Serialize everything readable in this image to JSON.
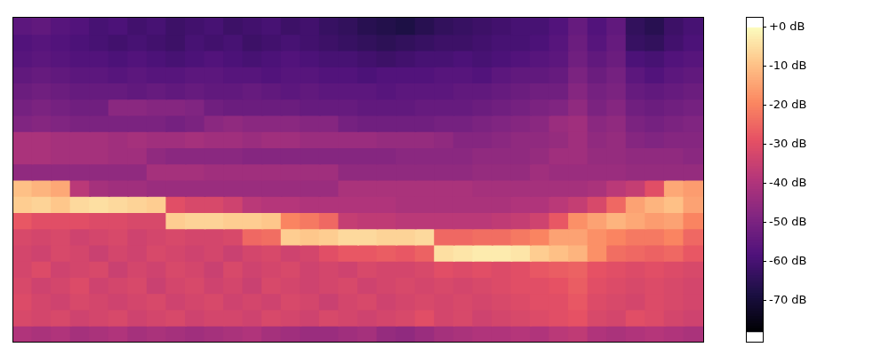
{
  "chart_data": {
    "type": "heatmap",
    "tick_labels": false,
    "cells": [
      [
        -56,
        -55,
        -57,
        -58,
        -60,
        -59,
        -61,
        -60,
        -62,
        -61,
        -60,
        -62,
        -61,
        -60,
        -62,
        -61,
        -63,
        -64,
        -66,
        -67,
        -68,
        -66,
        -64,
        -63,
        -62,
        -61,
        -60,
        -60,
        -58,
        -54,
        -58,
        -55,
        -64,
        -66,
        -62,
        -60
      ],
      [
        -58,
        -57,
        -58,
        -59,
        -60,
        -61,
        -60,
        -61,
        -62,
        -60,
        -61,
        -60,
        -62,
        -61,
        -60,
        -61,
        -62,
        -63,
        -64,
        -65,
        -64,
        -63,
        -62,
        -62,
        -61,
        -60,
        -60,
        -59,
        -57,
        -53,
        -57,
        -54,
        -63,
        -64,
        -61,
        -59
      ],
      [
        -57,
        -56,
        -57,
        -58,
        -58,
        -59,
        -58,
        -59,
        -60,
        -59,
        -58,
        -59,
        -60,
        -59,
        -58,
        -59,
        -60,
        -60,
        -61,
        -62,
        -61,
        -60,
        -60,
        -59,
        -60,
        -59,
        -58,
        -57,
        -56,
        -52,
        -55,
        -53,
        -59,
        -60,
        -58,
        -57
      ],
      [
        -55,
        -54,
        -55,
        -56,
        -56,
        -57,
        -56,
        -57,
        -57,
        -56,
        -56,
        -57,
        -57,
        -58,
        -57,
        -57,
        -58,
        -58,
        -59,
        -58,
        -58,
        -58,
        -57,
        -57,
        -58,
        -56,
        -55,
        -55,
        -54,
        -50,
        -53,
        -51,
        -56,
        -58,
        -56,
        -55
      ],
      [
        -53,
        -52,
        -53,
        -54,
        -54,
        -54,
        -55,
        -54,
        -55,
        -54,
        -55,
        -55,
        -54,
        -55,
        -56,
        -55,
        -56,
        -56,
        -56,
        -57,
        -56,
        -56,
        -56,
        -55,
        -55,
        -54,
        -53,
        -52,
        -52,
        -48,
        -51,
        -50,
        -54,
        -55,
        -54,
        -53
      ],
      [
        -51,
        -50,
        -51,
        -52,
        -52,
        -47,
        -47,
        -48,
        -48,
        -49,
        -52,
        -53,
        -53,
        -53,
        -53,
        -54,
        -54,
        -54,
        -55,
        -55,
        -55,
        -54,
        -54,
        -54,
        -53,
        -52,
        -51,
        -50,
        -49,
        -46,
        -50,
        -48,
        -52,
        -53,
        -52,
        -51
      ],
      [
        -49,
        -48,
        -49,
        -50,
        -50,
        -50,
        -50,
        -50,
        -51,
        -50,
        -47,
        -46,
        -47,
        -47,
        -47,
        -48,
        -48,
        -51,
        -52,
        -52,
        -52,
        -52,
        -51,
        -51,
        -50,
        -49,
        -48,
        -47,
        -44,
        -43,
        -47,
        -46,
        -50,
        -51,
        -50,
        -49
      ],
      [
        -41,
        -41,
        -42,
        -42,
        -42,
        -43,
        -42,
        -43,
        -43,
        -42,
        -43,
        -43,
        -44,
        -43,
        -43,
        -44,
        -44,
        -44,
        -44,
        -45,
        -45,
        -45,
        -46,
        -48,
        -48,
        -47,
        -46,
        -46,
        -45,
        -43,
        -46,
        -45,
        -48,
        -49,
        -48,
        -48
      ],
      [
        -41,
        -41,
        -42,
        -42,
        -42,
        -43,
        -43,
        -46,
        -47,
        -47,
        -47,
        -47,
        -48,
        -48,
        -48,
        -48,
        -48,
        -48,
        -48,
        -48,
        -47,
        -47,
        -47,
        -47,
        -46,
        -46,
        -46,
        -45,
        -43,
        -43,
        -45,
        -45,
        -46,
        -46,
        -46,
        -47
      ],
      [
        -46,
        -46,
        -46,
        -46,
        -46,
        -46,
        -46,
        -42,
        -42,
        -42,
        -43,
        -43,
        -43,
        -43,
        -43,
        -43,
        -43,
        -46,
        -46,
        -46,
        -46,
        -46,
        -46,
        -46,
        -45,
        -45,
        -45,
        -43,
        -44,
        -44,
        -44,
        -44,
        -45,
        -45,
        -45,
        -45
      ],
      [
        -10,
        -12,
        -14,
        -38,
        -42,
        -43,
        -43,
        -44,
        -44,
        -44,
        -44,
        -44,
        -44,
        -44,
        -44,
        -44,
        -44,
        -41,
        -41,
        -41,
        -41,
        -41,
        -41,
        -41,
        -42,
        -42,
        -42,
        -42,
        -42,
        -42,
        -41,
        -38,
        -36,
        -30,
        -14,
        -16
      ],
      [
        -8,
        -7,
        -9,
        -6,
        -5,
        -6,
        -7,
        -8,
        -30,
        -32,
        -32,
        -34,
        -38,
        -39,
        -39,
        -40,
        -40,
        -40,
        -40,
        -40,
        -41,
        -41,
        -41,
        -41,
        -41,
        -41,
        -40,
        -40,
        -38,
        -36,
        -32,
        -25,
        -15,
        -12,
        -10,
        -15
      ],
      [
        -28,
        -30,
        -30,
        -30,
        -31,
        -31,
        -32,
        -32,
        -8,
        -7,
        -7,
        -8,
        -8,
        -9,
        -20,
        -22,
        -25,
        -36,
        -37,
        -37,
        -38,
        -38,
        -38,
        -38,
        -38,
        -37,
        -36,
        -34,
        -28,
        -18,
        -15,
        -12,
        -14,
        -16,
        -15,
        -20
      ],
      [
        -32,
        -33,
        -32,
        -34,
        -33,
        -32,
        -34,
        -33,
        -32,
        -33,
        -33,
        -32,
        -25,
        -24,
        -8,
        -9,
        -8,
        -6,
        -6,
        -7,
        -7,
        -6,
        -25,
        -25,
        -24,
        -24,
        -22,
        -20,
        -15,
        -15,
        -18,
        -20,
        -22,
        -22,
        -20,
        -25
      ],
      [
        -33,
        -34,
        -32,
        -33,
        -35,
        -33,
        -34,
        -32,
        -33,
        -34,
        -33,
        -35,
        -33,
        -32,
        -34,
        -33,
        -30,
        -28,
        -28,
        -27,
        -28,
        -26,
        -5,
        -4,
        -3,
        -3,
        -4,
        -8,
        -10,
        -12,
        -18,
        -24,
        -25,
        -26,
        -25,
        -28
      ],
      [
        -33,
        -31,
        -34,
        -33,
        -32,
        -35,
        -33,
        -34,
        -32,
        -33,
        -35,
        -32,
        -34,
        -33,
        -32,
        -34,
        -33,
        -34,
        -32,
        -33,
        -33,
        -32,
        -30,
        -31,
        -30,
        -31,
        -30,
        -28,
        -27,
        -26,
        -29,
        -30,
        -31,
        -30,
        -31,
        -32
      ],
      [
        -32,
        -34,
        -33,
        -31,
        -34,
        -33,
        -32,
        -35,
        -33,
        -32,
        -34,
        -33,
        -35,
        -32,
        -33,
        -34,
        -33,
        -32,
        -34,
        -33,
        -32,
        -33,
        -32,
        -33,
        -32,
        -31,
        -30,
        -30,
        -29,
        -27,
        -30,
        -31,
        -32,
        -31,
        -32,
        -33
      ],
      [
        -31,
        -33,
        -34,
        -32,
        -33,
        -34,
        -33,
        -32,
        -34,
        -33,
        -32,
        -34,
        -33,
        -34,
        -32,
        -33,
        -35,
        -33,
        -32,
        -34,
        -33,
        -32,
        -33,
        -32,
        -33,
        -32,
        -31,
        -30,
        -30,
        -28,
        -31,
        -32,
        -33,
        -31,
        -32,
        -33
      ],
      [
        -32,
        -33,
        -32,
        -34,
        -33,
        -32,
        -34,
        -33,
        -32,
        -34,
        -33,
        -33,
        -34,
        -32,
        -33,
        -34,
        -32,
        -33,
        -34,
        -33,
        -32,
        -30,
        -33,
        -32,
        -34,
        -33,
        -32,
        -31,
        -30,
        -29,
        -32,
        -33,
        -30,
        -31,
        -33,
        -34
      ],
      [
        -40,
        -41,
        -40,
        -42,
        -41,
        -40,
        -42,
        -41,
        -42,
        -43,
        -42,
        -41,
        -40,
        -42,
        -43,
        -44,
        -44,
        -43,
        -42,
        -45,
        -46,
        -44,
        -42,
        -41,
        -40,
        -40,
        -39,
        -40,
        -38,
        -37,
        -40,
        -41,
        -40,
        -39,
        -40,
        -41
      ]
    ],
    "colorbar": {
      "range": [
        -78,
        0
      ],
      "ticks": [
        {
          "value": 0,
          "label": "+0 dB"
        },
        {
          "value": -10,
          "label": "-10 dB"
        },
        {
          "value": -20,
          "label": "-20 dB"
        },
        {
          "value": -30,
          "label": "-30 dB"
        },
        {
          "value": -40,
          "label": "-40 dB"
        },
        {
          "value": -50,
          "label": "-50 dB"
        },
        {
          "value": -60,
          "label": "-60 dB"
        },
        {
          "value": -70,
          "label": "-70 dB"
        }
      ]
    }
  }
}
